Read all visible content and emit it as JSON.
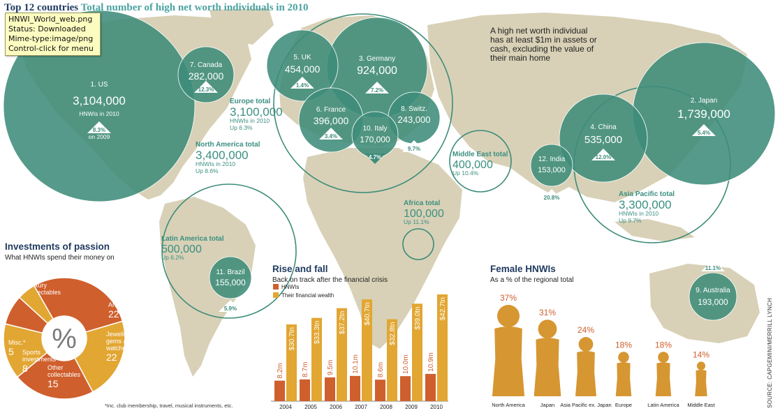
{
  "title": {
    "part1": "Top 12 countries",
    "part2": "Total number of high net worth individuals in 2010"
  },
  "tooltip": {
    "lines": [
      "HNWI_World_web.png",
      "Status: Downloaded",
      "Mime-type:image/png",
      "Control-click for menu"
    ]
  },
  "definition": "A high net worth individual has at least $1m in assets or cash, excluding the value of their main home",
  "colors": {
    "teal": "#3d8c7a",
    "map": "#d8d1b7",
    "orange": "#cf5f2d",
    "gold": "#e2a633",
    "femaleGold": "#d69632",
    "navy": "#1f3a5f",
    "accentText": "#3b8f80"
  },
  "chart_data": [
    {
      "type": "bubble",
      "title": "Top 12 countries",
      "subtitle": "Total number of high net worth individuals in 2010",
      "countries": [
        {
          "rank": "1.",
          "name": "US",
          "value": 3104000,
          "value_label": "3,104,000",
          "sub": "HNWIs in 2010",
          "change": "8.3%",
          "change_note": "on 2009",
          "direction": "up"
        },
        {
          "rank": "2.",
          "name": "Japan",
          "value": 1739000,
          "value_label": "1,739,000",
          "change": "5.4%",
          "direction": "up"
        },
        {
          "rank": "3.",
          "name": "Germany",
          "value": 924000,
          "value_label": "924,000",
          "change": "7.2%",
          "direction": "up"
        },
        {
          "rank": "4.",
          "name": "China",
          "value": 535000,
          "value_label": "535,000",
          "change": "12.0%",
          "direction": "up"
        },
        {
          "rank": "5.",
          "name": "UK",
          "value": 454000,
          "value_label": "454,000",
          "change": "1.4%",
          "direction": "up"
        },
        {
          "rank": "6.",
          "name": "France",
          "value": 396000,
          "value_label": "396,000",
          "change": "3.4%",
          "direction": "up"
        },
        {
          "rank": "7.",
          "name": "Canada",
          "value": 282000,
          "value_label": "282,000",
          "change": "12.3%",
          "direction": "up"
        },
        {
          "rank": "8.",
          "name": "Switz.",
          "value": 243000,
          "value_label": "243,000",
          "change": "9.7%",
          "direction": "up"
        },
        {
          "rank": "9.",
          "name": "Australia",
          "value": 193000,
          "value_label": "193,000",
          "change": "11.1%",
          "direction": "up"
        },
        {
          "rank": "10.",
          "name": "Italy",
          "value": 170000,
          "value_label": "170,000",
          "change": "4.7%",
          "direction": "down"
        },
        {
          "rank": "11.",
          "name": "Brazil",
          "value": 155000,
          "value_label": "155,000",
          "change": "5.9%",
          "direction": "up"
        },
        {
          "rank": "12.",
          "name": "India",
          "value": 153000,
          "value_label": "153,000",
          "change": "20.8%",
          "direction": "up"
        }
      ],
      "regions": [
        {
          "name": "Europe total",
          "value": 3100000,
          "value_label": "3,100,000",
          "sub": "HNWIs in 2010",
          "change": "Up 6.3%"
        },
        {
          "name": "North America total",
          "value": 3400000,
          "value_label": "3,400,000",
          "sub": "HNWIs in 2010",
          "change": "Up 8.6%"
        },
        {
          "name": "Middle East total",
          "value": 400000,
          "value_label": "400,000",
          "change": "Up 10.4%"
        },
        {
          "name": "Africa total",
          "value": 100000,
          "value_label": "100,000",
          "change": "Up 11.1%"
        },
        {
          "name": "Latin America total",
          "value": 500000,
          "value_label": "500,000",
          "change": "Up 6.2%"
        },
        {
          "name": "Asia Pacific total",
          "value": 3300000,
          "value_label": "3,300,000",
          "sub": "HNWIs in 2010",
          "change": "Up 9.7%"
        }
      ]
    },
    {
      "type": "pie",
      "title": "Investments of passion",
      "subtitle": "What HNWIs spend their money on",
      "center_label": "%",
      "slices": [
        {
          "label": "Luxury collectables",
          "value": 29,
          "color": "#cf5f2d"
        },
        {
          "label": "Art",
          "value": 22,
          "color": "#e2a633"
        },
        {
          "label": "Jewellery, gems & watches",
          "value": 22,
          "color": "#cf5f2d"
        },
        {
          "label": "Other collectables",
          "value": 15,
          "color": "#e2a633"
        },
        {
          "label": "Sports investments",
          "value": 8,
          "color": "#cf5f2d"
        },
        {
          "label": "Misc.*",
          "value": 5,
          "color": "#e2a633"
        }
      ],
      "footnote": "*Inc. club membership, travel, musical instruments, etc."
    },
    {
      "type": "bar",
      "title": "Rise and fall",
      "subtitle": "Back on track after the financial crisis",
      "categories": [
        "2004",
        "2005",
        "2006",
        "2007",
        "2008",
        "2009",
        "2010"
      ],
      "series": [
        {
          "name": "HNWIs",
          "color": "#cf5f2d",
          "values": [
            8.2,
            8.7,
            9.5,
            10.1,
            8.6,
            10.0,
            10.9
          ],
          "labels": [
            "8.2m",
            "8.7m",
            "9.5m",
            "10.1m",
            "8.6m",
            "10.0m",
            "10.9m"
          ]
        },
        {
          "name": "Their financial wealth",
          "color": "#e2a633",
          "values": [
            30.7,
            33.3,
            37.2,
            40.7,
            32.8,
            39.0,
            42.7
          ],
          "labels": [
            "$30.7tn",
            "$33.3tn",
            "$37.2tn",
            "$40.7tn",
            "$32.8tn",
            "$39.0tn",
            "$42.7tn"
          ]
        }
      ]
    },
    {
      "type": "pictogram",
      "title": "Female HNWIs",
      "subtitle": "As a % of the regional total",
      "categories": [
        "North America",
        "Japan",
        "Asia Pacific ex. Japan",
        "Europe",
        "Latin America",
        "Middle East"
      ],
      "values": [
        37,
        31,
        24,
        18,
        18,
        14
      ],
      "labels": [
        "37%",
        "31%",
        "24%",
        "18%",
        "18%",
        "14%"
      ]
    }
  ],
  "source": "SOURCE: CAPGEMINI/MERRILL LYNCH"
}
